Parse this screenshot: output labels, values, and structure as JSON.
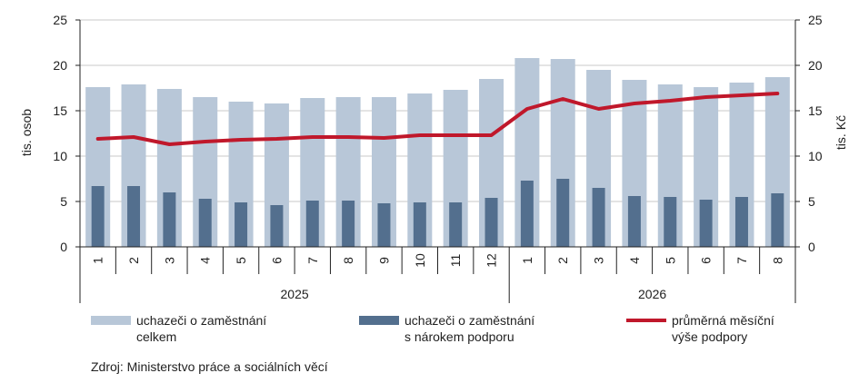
{
  "chart_data": {
    "type": "bar+line",
    "categories": [
      "1",
      "2",
      "3",
      "4",
      "5",
      "6",
      "7",
      "8",
      "9",
      "10",
      "11",
      "12",
      "1",
      "2",
      "3",
      "4",
      "5",
      "6",
      "7",
      "8"
    ],
    "groups": [
      {
        "label": "2025",
        "count": 12
      },
      {
        "label": "2026",
        "count": 8
      }
    ],
    "series": [
      {
        "name": "uchazeči o zaměstnání celkem",
        "kind": "bar",
        "axis": "left",
        "color": "#b8c7d8",
        "values": [
          17.6,
          17.9,
          17.4,
          16.5,
          16.0,
          15.8,
          16.4,
          16.5,
          16.5,
          16.9,
          17.3,
          18.5,
          20.8,
          20.7,
          19.5,
          18.4,
          17.9,
          17.6,
          18.1,
          18.7
        ]
      },
      {
        "name": "uchazeči o zaměstnání s nárokem podporu",
        "kind": "bar",
        "axis": "left",
        "color": "#536f8e",
        "values": [
          6.7,
          6.7,
          6.0,
          5.3,
          4.9,
          4.6,
          5.1,
          5.1,
          4.8,
          4.9,
          4.9,
          5.4,
          7.3,
          7.5,
          6.5,
          5.6,
          5.5,
          5.2,
          5.5,
          5.9
        ]
      },
      {
        "name": "průměrná měsíční výše podpory",
        "kind": "line",
        "axis": "right",
        "color": "#c0182b",
        "values": [
          11.9,
          12.1,
          11.3,
          11.6,
          11.8,
          11.9,
          12.1,
          12.1,
          12.0,
          12.3,
          12.3,
          12.3,
          15.2,
          16.3,
          15.2,
          15.8,
          16.1,
          16.5,
          16.7,
          16.9
        ]
      }
    ],
    "ylabel_left": "tis. osob",
    "ylabel_right": "tis. Kč",
    "ylim_left": [
      0,
      25
    ],
    "ylim_right": [
      0,
      25
    ],
    "yticks": [
      0,
      5,
      10,
      15,
      20,
      25
    ],
    "grid": true,
    "legend_position": "bottom"
  },
  "legend": {
    "total": "uchazeči o zaměstnání\ncelkem",
    "eligible": "uchazeči o zaměstnání\ns nárokem podporu",
    "benefit": "průměrná měsíční\nvýše podpory"
  },
  "source": "Zdroj: Ministerstvo práce a sociálních věcí"
}
